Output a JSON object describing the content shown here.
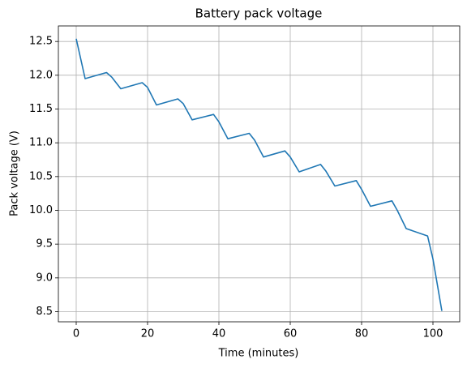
{
  "chart_data": {
    "type": "line",
    "title": "Battery pack voltage",
    "x_label": "Time (minutes)",
    "y_label": "Pack voltage (V)",
    "x": [
      0,
      2.5,
      8.5,
      10,
      12.5,
      18.5,
      20,
      22.5,
      28.5,
      30,
      32.5,
      38.5,
      40,
      42.5,
      48.5,
      50,
      52.5,
      58.5,
      60,
      62.5,
      68.5,
      70,
      72.5,
      78.5,
      80,
      82.5,
      88.5,
      90,
      92.5,
      98.5,
      100,
      102.5
    ],
    "values": [
      12.54,
      11.95,
      12.04,
      11.97,
      11.8,
      11.89,
      11.82,
      11.56,
      11.65,
      11.58,
      11.34,
      11.42,
      11.31,
      11.06,
      11.14,
      11.04,
      10.79,
      10.88,
      10.79,
      10.57,
      10.68,
      10.58,
      10.36,
      10.44,
      10.31,
      10.06,
      10.14,
      10.0,
      9.73,
      9.62,
      9.28,
      8.51
    ],
    "color": "#1f77b4",
    "xlim": [
      -5,
      107.5
    ],
    "ylim": [
      8.35,
      12.73
    ],
    "xticks": [
      0,
      20,
      40,
      60,
      80,
      100
    ],
    "yticks": [
      {
        "value": 8.5,
        "label": "8.5"
      },
      {
        "value": 9,
        "label": "9.0"
      },
      {
        "value": 9.5,
        "label": "9.5"
      },
      {
        "value": 10,
        "label": "10.0"
      },
      {
        "value": 10.5,
        "label": "10.5"
      },
      {
        "value": 11,
        "label": "11.0"
      },
      {
        "value": 11.5,
        "label": "11.5"
      },
      {
        "value": 12,
        "label": "12.0"
      },
      {
        "value": 12.5,
        "label": "12.5"
      }
    ],
    "grid": true
  }
}
